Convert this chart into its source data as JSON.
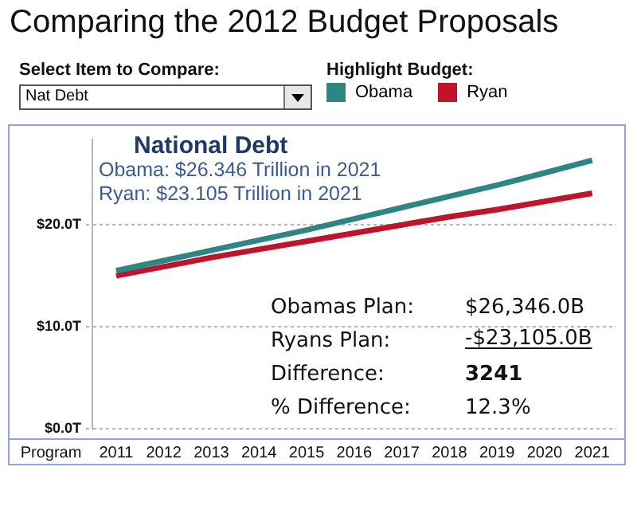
{
  "chart_data": {
    "type": "line",
    "title": "Comparing the 2012 Budget Proposals",
    "xlabel": "Program",
    "legend_title": "Highlight Budget:",
    "legend": "top right",
    "marker": "none",
    "grid": "y",
    "categories": [
      "2011",
      "2012",
      "2013",
      "2014",
      "2015",
      "2016",
      "2017",
      "2018",
      "2019",
      "2020",
      "2021"
    ],
    "series": [
      {
        "name": "Obama",
        "color": "#2e8583",
        "values": [
          15.5,
          16.5,
          17.5,
          18.5,
          19.5,
          20.6,
          21.7,
          22.8,
          23.9,
          25.1,
          26.346
        ]
      },
      {
        "name": "Ryan",
        "color": "#c0142a",
        "values": [
          15.0,
          15.9,
          16.8,
          17.6,
          18.4,
          19.2,
          20.0,
          20.8,
          21.5,
          22.3,
          23.105
        ]
      }
    ],
    "ylim": [
      0,
      28.4
    ],
    "yticks": [
      {
        "value": 0,
        "label": "$0.0T"
      },
      {
        "value": 10,
        "label": "$10.0T"
      },
      {
        "value": 20,
        "label": "$20.0T"
      }
    ],
    "annotations": [
      "National Debt",
      "Obama: $26.346 Trillion in 2021",
      "Ryan: $23.105 Trillion in 2021",
      "Obamas Plan:",
      "$26,346.0B",
      "Ryans Plan:",
      "-$23,105.0B",
      "Difference:",
      "3241",
      "% Difference:",
      "12.3%",
      "Select Item to Compare:",
      "Nat Debt"
    ]
  }
}
